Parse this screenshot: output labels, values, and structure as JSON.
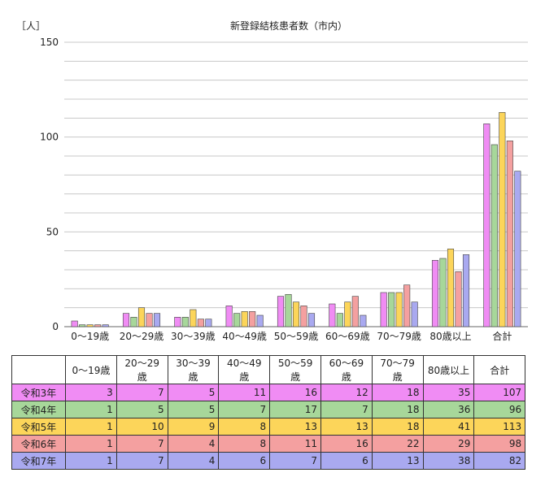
{
  "chart_data": {
    "type": "bar",
    "title": "新登録結核患者数（市内）",
    "ylabel": "［人］",
    "xlabel": "",
    "ylim": [
      0,
      150
    ],
    "yticks": [
      0,
      50,
      100,
      150
    ],
    "minor_grid_step": 10,
    "categories": [
      "0～19歳",
      "20～29歳",
      "30～39歳",
      "40～49歳",
      "50～59歳",
      "60～69歳",
      "70～79歳",
      "80歳以上",
      "合計"
    ],
    "series": [
      {
        "name": "令和3年",
        "color": "#f08cf4",
        "values": [
          3,
          7,
          5,
          11,
          16,
          12,
          18,
          35,
          107
        ]
      },
      {
        "name": "令和4年",
        "color": "#a7d79a",
        "values": [
          1,
          5,
          5,
          7,
          17,
          7,
          18,
          36,
          96
        ]
      },
      {
        "name": "令和5年",
        "color": "#fcd55a",
        "values": [
          1,
          10,
          9,
          8,
          13,
          13,
          18,
          41,
          113
        ]
      },
      {
        "name": "令和6年",
        "color": "#f4a0a0",
        "values": [
          1,
          7,
          4,
          8,
          11,
          16,
          22,
          29,
          98
        ]
      },
      {
        "name": "令和7年",
        "color": "#a9a9f0",
        "values": [
          1,
          7,
          4,
          6,
          7,
          6,
          13,
          38,
          82
        ]
      }
    ],
    "grid": true,
    "legend": "data table below chart"
  }
}
